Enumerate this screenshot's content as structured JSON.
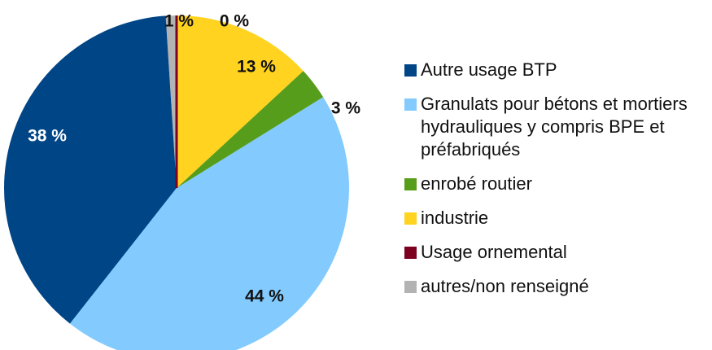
{
  "chart_data": {
    "type": "pie",
    "categories": [
      "Autre usage BTP",
      "Granulats pour bétons et mortiers hydrauliques y compris BPE et préfabriqués",
      "enrobé routier",
      "industrie",
      "Usage ornemental",
      "autres/non renseigné"
    ],
    "values": [
      38,
      44,
      3,
      13,
      0,
      1
    ],
    "value_labels": [
      "38 %",
      "44 %",
      "3 %",
      "13 %",
      "0 %",
      "1 %"
    ],
    "colors": [
      "#004586",
      "#83caff",
      "#579d1c",
      "#ffd320",
      "#7e0021",
      "#b3b3b3"
    ],
    "legend": "right"
  }
}
